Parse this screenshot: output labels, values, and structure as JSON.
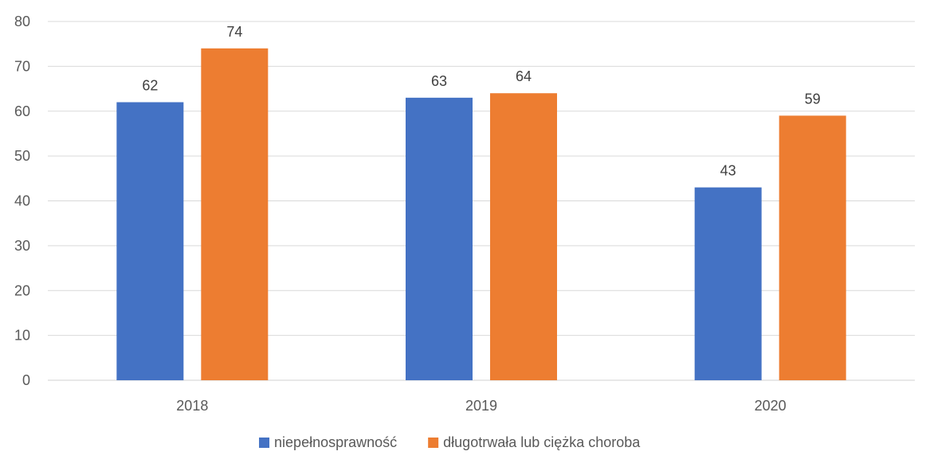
{
  "chart_data": {
    "type": "bar",
    "categories": [
      "2018",
      "2019",
      "2020"
    ],
    "series": [
      {
        "name": "niepełnosprawność",
        "color": "#4472C4",
        "values": [
          62,
          63,
          43
        ]
      },
      {
        "name": "długotrwała lub ciężka choroba",
        "color": "#ED7D31",
        "values": [
          74,
          64,
          59
        ]
      }
    ],
    "ylim": [
      0,
      80
    ],
    "yticks": [
      0,
      10,
      20,
      30,
      40,
      50,
      60,
      70,
      80
    ],
    "grid": true,
    "legend_position": "bottom",
    "data_labels": true,
    "title": "",
    "xlabel": "",
    "ylabel": ""
  }
}
